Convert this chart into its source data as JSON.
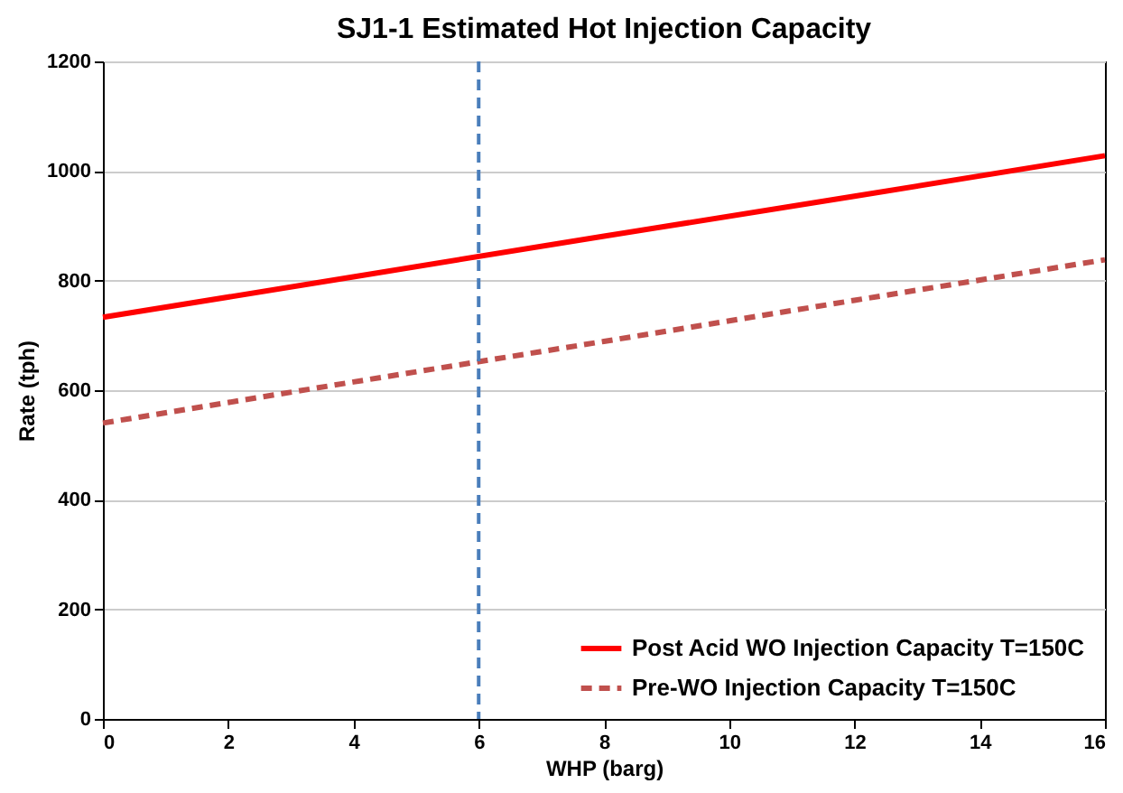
{
  "chart_data": {
    "type": "line",
    "title": "SJ1-1 Estimated Hot Injection Capacity",
    "xlabel": "WHP (barg)",
    "ylabel": "Rate (tph)",
    "x": [
      0,
      4,
      8,
      12,
      16
    ],
    "series": [
      {
        "name": "Post Acid WO Injection Capacity T=150C",
        "color": "#ff0000",
        "line_style": "solid",
        "values": [
          733,
          807,
          881,
          954,
          1028
        ]
      },
      {
        "name": "Pre-WO Injection Capacity T=150C",
        "color": "#c0504d",
        "line_style": "dashed",
        "values": [
          540,
          615,
          689,
          764,
          838
        ]
      }
    ],
    "xlim": [
      0,
      16
    ],
    "xticks": [
      0,
      2,
      4,
      6,
      8,
      10,
      12,
      14,
      16
    ],
    "ylim": [
      0,
      1200
    ],
    "yticks": [
      0,
      200,
      400,
      600,
      800,
      1000,
      1200
    ],
    "ref_lines": [
      {
        "axis": "x",
        "value": 6,
        "color": "#4a7ebb",
        "line_style": "dashed"
      }
    ],
    "grid": "y",
    "legend": "bottom right",
    "marker": "none"
  }
}
